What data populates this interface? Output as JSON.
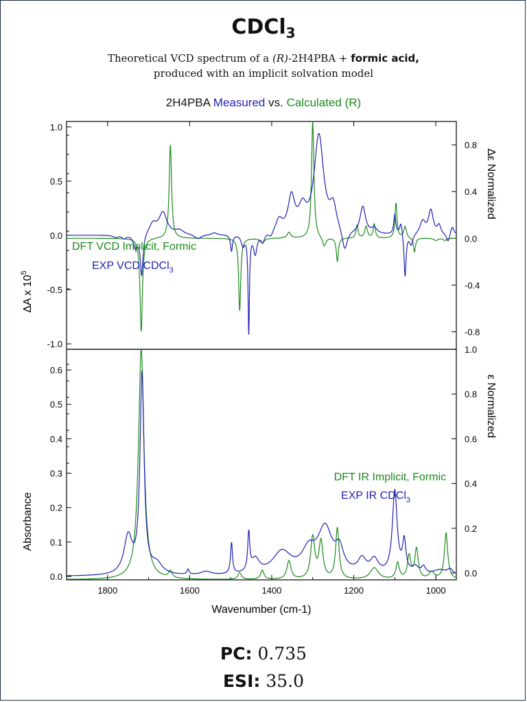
{
  "header": {
    "title_main": "CDCl",
    "title_sub": "3",
    "subtitle_line1_a": "Theoretical VCD spectrum of a ",
    "subtitle_line1_r": "(R)",
    "subtitle_line1_b": "-2H4PBA + ",
    "subtitle_line1_bold": "formic acid,",
    "subtitle_line2": "produced with an implicit solvation model"
  },
  "legend_top": {
    "part1": "2H4PBA ",
    "measured": "Measured",
    "part2": " vs. ",
    "calculated": "Calculated (R)"
  },
  "metrics": {
    "pc_label": "PC:",
    "pc_value": "0.735",
    "esi_label": "ESI:",
    "esi_value": "35.0"
  },
  "colors": {
    "calculated": "#1b8a1b",
    "measured": "#1f1fb4",
    "axis": "#000000"
  },
  "chart_data": [
    {
      "type": "line",
      "panel": "VCD",
      "xlabel": "",
      "xlim": [
        1900,
        950
      ],
      "y_left_label": "ΔA x 10",
      "y_left_label_sup": "5",
      "y_left_ticks": [
        "1.0",
        "0.5",
        "0.0",
        "-0.5",
        "-1.0"
      ],
      "y_right_label": "Δε Normalized",
      "y_right_ticks": [
        "0.8",
        "0.4",
        "0.0",
        "-0.4",
        "-0.8"
      ],
      "legend": {
        "calc": "DFT VCD Implicit, Formic",
        "exp_main": "EXP VCD CDCl",
        "exp_sub": "3"
      },
      "series": [
        {
          "name": "DFT VCD Implicit, Formic",
          "axis": "right",
          "baseline": 0.0,
          "ylim": [
            -0.95,
            1.0
          ],
          "peaks": [
            {
              "x": 1718,
              "h": -0.8,
              "w": 3.5
            },
            {
              "x": 1647,
              "h": 0.8,
              "w": 3.5
            },
            {
              "x": 1478,
              "h": -0.62,
              "w": 3
            },
            {
              "x": 1423,
              "h": -0.04,
              "w": 6
            },
            {
              "x": 1358,
              "h": 0.05,
              "w": 5
            },
            {
              "x": 1300,
              "h": 1.0,
              "w": 3.5
            },
            {
              "x": 1272,
              "h": -0.08,
              "w": 5
            },
            {
              "x": 1240,
              "h": -0.2,
              "w": 3
            },
            {
              "x": 1192,
              "h": 0.11,
              "w": 3
            },
            {
              "x": 1170,
              "h": 0.1,
              "w": 4
            },
            {
              "x": 1150,
              "h": 0.12,
              "w": 3
            },
            {
              "x": 1097,
              "h": 0.3,
              "w": 3
            },
            {
              "x": 1075,
              "h": 0.1,
              "w": 4
            },
            {
              "x": 1052,
              "h": -0.12,
              "w": 3
            },
            {
              "x": 1000,
              "h": -0.02,
              "w": 5
            },
            {
              "x": 978,
              "h": -0.02,
              "w": 4
            }
          ]
        },
        {
          "name": "EXP VCD CDCl3",
          "axis": "left",
          "baseline": 0.0,
          "ylim": [
            -1.05,
            1.05
          ],
          "peaks": [
            {
              "x": 1780,
              "h": -0.02,
              "w": 8
            },
            {
              "x": 1760,
              "h": -0.03,
              "w": 6
            },
            {
              "x": 1732,
              "h": -0.12,
              "w": 6
            },
            {
              "x": 1717,
              "h": -0.38,
              "w": 4
            },
            {
              "x": 1690,
              "h": 0.1,
              "w": 12
            },
            {
              "x": 1665,
              "h": 0.2,
              "w": 12
            },
            {
              "x": 1625,
              "h": 0.04,
              "w": 12
            },
            {
              "x": 1580,
              "h": -0.04,
              "w": 10
            },
            {
              "x": 1540,
              "h": 0.02,
              "w": 8
            },
            {
              "x": 1498,
              "h": -0.15,
              "w": 3
            },
            {
              "x": 1470,
              "h": -0.1,
              "w": 5
            },
            {
              "x": 1456,
              "h": -0.9,
              "w": 2
            },
            {
              "x": 1440,
              "h": -0.18,
              "w": 5
            },
            {
              "x": 1422,
              "h": -0.08,
              "w": 5
            },
            {
              "x": 1402,
              "h": -0.05,
              "w": 6
            },
            {
              "x": 1382,
              "h": 0.12,
              "w": 10
            },
            {
              "x": 1352,
              "h": 0.32,
              "w": 10
            },
            {
              "x": 1325,
              "h": 0.2,
              "w": 12
            },
            {
              "x": 1285,
              "h": 0.9,
              "w": 14
            },
            {
              "x": 1250,
              "h": 0.22,
              "w": 10
            },
            {
              "x": 1222,
              "h": -0.2,
              "w": 8
            },
            {
              "x": 1178,
              "h": 0.25,
              "w": 8
            },
            {
              "x": 1150,
              "h": 0.05,
              "w": 8
            },
            {
              "x": 1100,
              "h": 0.18,
              "w": 3
            },
            {
              "x": 1085,
              "h": 0.12,
              "w": 4
            },
            {
              "x": 1075,
              "h": -0.4,
              "w": 3
            },
            {
              "x": 1060,
              "h": -0.1,
              "w": 5
            },
            {
              "x": 1032,
              "h": 0.12,
              "w": 8
            },
            {
              "x": 1012,
              "h": 0.22,
              "w": 7
            },
            {
              "x": 992,
              "h": 0.08,
              "w": 5
            },
            {
              "x": 970,
              "h": -0.08,
              "w": 5
            },
            {
              "x": 960,
              "h": 0.08,
              "w": 5
            }
          ]
        }
      ]
    },
    {
      "type": "line",
      "panel": "IR",
      "xlabel": "Wavenumber (cm-1)",
      "xlim": [
        1900,
        950
      ],
      "x_ticks": [
        "1800",
        "1600",
        "1400",
        "1200",
        "1000"
      ],
      "y_left_label": "Absorbance",
      "y_left_ticks": [
        "0.6",
        "0.5",
        "0.4",
        "0.3",
        "0.2",
        "0.1",
        "0.0"
      ],
      "y_right_label": "ε Normalized",
      "y_right_ticks": [
        "1.0",
        "0.8",
        "0.6",
        "0.4",
        "0.2",
        "0.0"
      ],
      "legend": {
        "calc": "DFT IR Implicit, Formic",
        "exp_main": "EXP IR CDCl",
        "exp_sub": "3"
      },
      "series": [
        {
          "name": "DFT IR Implicit, Formic",
          "axis": "right",
          "baseline": 0.0,
          "ylim": [
            0.0,
            1.0
          ],
          "peaks": [
            {
              "x": 1718,
              "h": 1.0,
              "w": 8
            },
            {
              "x": 1647,
              "h": 0.03,
              "w": 5
            },
            {
              "x": 1478,
              "h": 0.03,
              "w": 5
            },
            {
              "x": 1423,
              "h": 0.04,
              "w": 5
            },
            {
              "x": 1358,
              "h": 0.08,
              "w": 6
            },
            {
              "x": 1300,
              "h": 0.18,
              "w": 6
            },
            {
              "x": 1280,
              "h": 0.16,
              "w": 6
            },
            {
              "x": 1240,
              "h": 0.22,
              "w": 5
            },
            {
              "x": 1150,
              "h": 0.05,
              "w": 12
            },
            {
              "x": 1093,
              "h": 0.07,
              "w": 5
            },
            {
              "x": 1065,
              "h": 0.1,
              "w": 5
            },
            {
              "x": 1047,
              "h": 0.13,
              "w": 5
            },
            {
              "x": 1010,
              "h": 0.03,
              "w": 8
            },
            {
              "x": 975,
              "h": 0.2,
              "w": 5
            }
          ]
        },
        {
          "name": "EXP IR CDCl3",
          "axis": "left",
          "baseline": 0.0,
          "ylim": [
            -0.01,
            0.66
          ],
          "peaks": [
            {
              "x": 1750,
              "h": 0.11,
              "w": 12
            },
            {
              "x": 1716,
              "h": 0.58,
              "w": 6
            },
            {
              "x": 1680,
              "h": 0.03,
              "w": 16
            },
            {
              "x": 1604,
              "h": 0.015,
              "w": 3
            },
            {
              "x": 1560,
              "h": 0.01,
              "w": 15
            },
            {
              "x": 1498,
              "h": 0.09,
              "w": 3
            },
            {
              "x": 1456,
              "h": 0.11,
              "w": 3
            },
            {
              "x": 1440,
              "h": 0.04,
              "w": 12
            },
            {
              "x": 1375,
              "h": 0.065,
              "w": 28
            },
            {
              "x": 1310,
              "h": 0.06,
              "w": 20
            },
            {
              "x": 1270,
              "h": 0.13,
              "w": 22
            },
            {
              "x": 1235,
              "h": 0.06,
              "w": 12
            },
            {
              "x": 1180,
              "h": 0.04,
              "w": 12
            },
            {
              "x": 1150,
              "h": 0.04,
              "w": 12
            },
            {
              "x": 1100,
              "h": 0.24,
              "w": 7
            },
            {
              "x": 1077,
              "h": 0.09,
              "w": 5
            },
            {
              "x": 1050,
              "h": 0.02,
              "w": 10
            },
            {
              "x": 1030,
              "h": 0.02,
              "w": 6
            },
            {
              "x": 990,
              "h": 0.015,
              "w": 20
            },
            {
              "x": 965,
              "h": 0.015,
              "w": 8
            }
          ]
        }
      ]
    }
  ]
}
